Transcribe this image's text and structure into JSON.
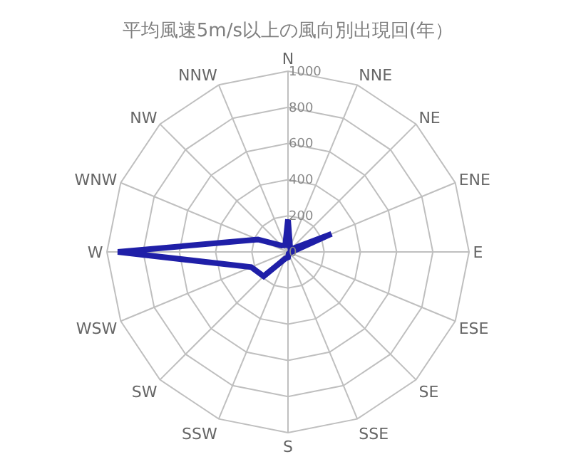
{
  "chart_data": {
    "type": "radar",
    "title": "平均風速5m/s以上の風向別出現回(年）",
    "categories": [
      "N",
      "NNE",
      "NE",
      "ENE",
      "E",
      "ESE",
      "SE",
      "SSE",
      "S",
      "SSW",
      "SW",
      "WSW",
      "W",
      "WNW",
      "NW",
      "NNW"
    ],
    "series": [
      {
        "color": "#1f1fa8",
        "values": [
          180,
          30,
          20,
          260,
          20,
          10,
          10,
          10,
          30,
          40,
          190,
          220,
          940,
          180,
          50,
          40
        ]
      }
    ],
    "ylim": [
      0,
      1000
    ],
    "yticks": [
      0,
      200,
      400,
      600,
      800,
      1000
    ],
    "grid": true,
    "marker": "none",
    "line_style": "solid"
  }
}
